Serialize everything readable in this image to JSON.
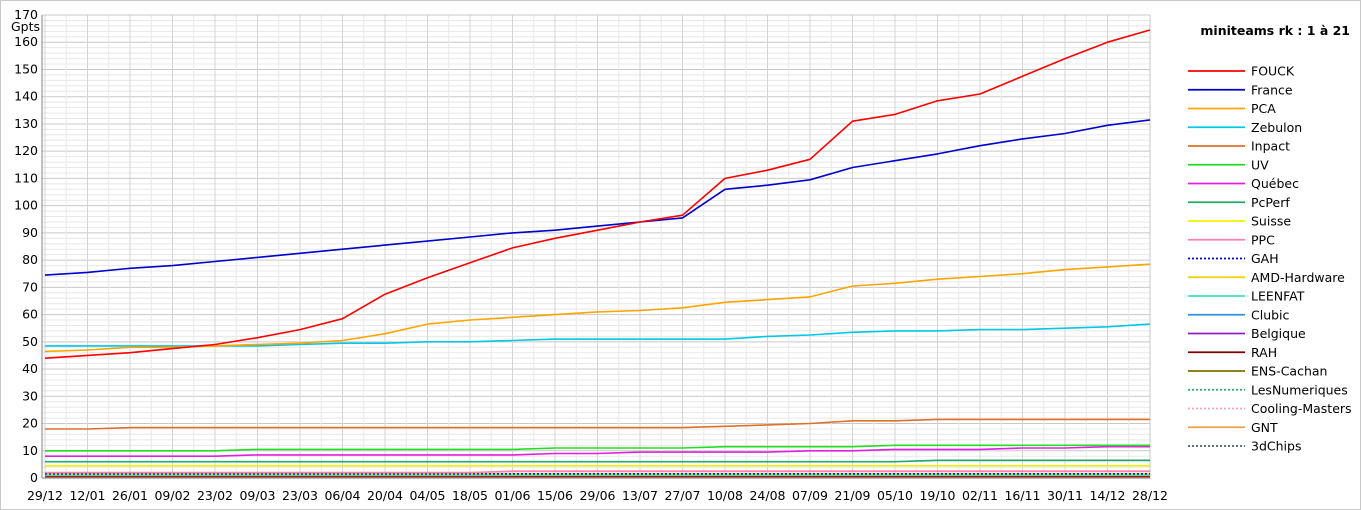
{
  "chart_data": {
    "type": "line",
    "title": "miniteams rk : 1 à 21",
    "ylabel": "Gpts",
    "xlabel": "",
    "ylim": [
      0,
      170
    ],
    "yticks": [
      0,
      10,
      20,
      30,
      40,
      50,
      60,
      70,
      80,
      90,
      100,
      110,
      120,
      130,
      140,
      150,
      160,
      170
    ],
    "grid": true,
    "legend_position": "right",
    "categories": [
      "29/12",
      "12/01",
      "26/01",
      "09/02",
      "23/02",
      "09/03",
      "23/03",
      "06/04",
      "20/04",
      "04/05",
      "18/05",
      "01/06",
      "15/06",
      "29/06",
      "13/07",
      "27/07",
      "10/08",
      "24/08",
      "07/09",
      "21/09",
      "05/10",
      "19/10",
      "02/11",
      "16/11",
      "30/11",
      "14/12",
      "28/12"
    ],
    "series": [
      {
        "name": "FOUCK",
        "color": "#ff0000",
        "style": "solid",
        "values": [
          44,
          45,
          46,
          47.5,
          49,
          51.5,
          54.5,
          58.5,
          67.5,
          73.5,
          79,
          84.5,
          88,
          91,
          94,
          96.5,
          110,
          113,
          117,
          131,
          133.5,
          138.5,
          141,
          147.5,
          154,
          160,
          164.5
        ]
      },
      {
        "name": "France",
        "color": "#0000cc",
        "style": "solid",
        "values": [
          74.5,
          75.5,
          77,
          78,
          79.5,
          81,
          82.5,
          84,
          85.5,
          87,
          88.5,
          90,
          91,
          92.5,
          94,
          95.5,
          106,
          107.5,
          109.5,
          114,
          116.5,
          119,
          122,
          124.5,
          126.5,
          129.5,
          131.5
        ]
      },
      {
        "name": "PCA",
        "color": "#ffa500",
        "style": "solid",
        "values": [
          46.5,
          47,
          48,
          48,
          48.5,
          49,
          49.5,
          50.5,
          53,
          56.5,
          58,
          59,
          60,
          61,
          61.5,
          62.5,
          64.5,
          65.5,
          66.5,
          70.5,
          71.5,
          73,
          74,
          75,
          76.5,
          77.5,
          78.5
        ]
      },
      {
        "name": "Zebulon",
        "color": "#00c8e6",
        "style": "solid",
        "values": [
          48.5,
          48.5,
          48.5,
          48.5,
          48.5,
          48.5,
          49,
          49.5,
          49.5,
          50,
          50,
          50.5,
          51,
          51,
          51,
          51,
          51,
          52,
          52.5,
          53.5,
          54,
          54,
          54.5,
          54.5,
          55,
          55.5,
          56.5
        ]
      },
      {
        "name": "Inpact",
        "color": "#e07028",
        "style": "solid",
        "values": [
          18,
          18,
          18.5,
          18.5,
          18.5,
          18.5,
          18.5,
          18.5,
          18.5,
          18.5,
          18.5,
          18.5,
          18.5,
          18.5,
          18.5,
          18.5,
          19,
          19.5,
          20,
          21,
          21,
          21.5,
          21.5,
          21.5,
          21.5,
          21.5,
          21.5
        ]
      },
      {
        "name": "UV",
        "color": "#22dd22",
        "style": "solid",
        "values": [
          10,
          10,
          10,
          10,
          10,
          10.5,
          10.5,
          10.5,
          10.5,
          10.5,
          10.5,
          10.5,
          11,
          11,
          11,
          11,
          11.5,
          11.5,
          11.5,
          11.5,
          12,
          12,
          12,
          12,
          12,
          12,
          12
        ]
      },
      {
        "name": "Québec",
        "color": "#e020e0",
        "style": "solid",
        "values": [
          8,
          8,
          8,
          8,
          8,
          8.5,
          8.5,
          8.5,
          8.5,
          8.5,
          8.5,
          8.5,
          9,
          9,
          9.5,
          9.5,
          9.5,
          9.5,
          10,
          10,
          10.5,
          10.5,
          10.5,
          11,
          11,
          11.5,
          11.5
        ]
      },
      {
        "name": "PcPerf",
        "color": "#22aa66",
        "style": "solid",
        "values": [
          6,
          6,
          6,
          6,
          6,
          6,
          6,
          6,
          6,
          6,
          6,
          6,
          6,
          6,
          6,
          6,
          6,
          6,
          6,
          6,
          6,
          6.5,
          6.5,
          6.5,
          6.5,
          6.5,
          6.5
        ]
      },
      {
        "name": "Suisse",
        "color": "#f0f000",
        "style": "solid",
        "values": [
          4.5,
          4.5,
          4.5,
          4.5,
          4.5,
          4.5,
          4.5,
          4.5,
          4.5,
          4.5,
          4.5,
          4.5,
          4.5,
          4.5,
          4.5,
          4.5,
          4.5,
          4.5,
          4.5,
          4.5,
          4.5,
          4.5,
          4.5,
          4.5,
          4.5,
          4.5,
          4.5
        ]
      },
      {
        "name": "PPC",
        "color": "#ff80b0",
        "style": "solid",
        "values": [
          2,
          2,
          2,
          2,
          2,
          2,
          2,
          2,
          2,
          2,
          2,
          2.5,
          2.5,
          2.5,
          2.5,
          2.5,
          2.5,
          2.5,
          2.5,
          2.5,
          2.5,
          2.5,
          2.5,
          2.5,
          2.5,
          2.5,
          2.5
        ]
      },
      {
        "name": "GAH",
        "color": "#0000cc",
        "style": "dotted",
        "values": [
          1.5,
          1.5,
          1.5,
          1.5,
          1.5,
          1.5,
          1.5,
          1.5,
          1.5,
          1.5,
          1.5,
          1.5,
          1.5,
          1.5,
          1.5,
          1.5,
          1.5,
          1.5,
          1.5,
          1.5,
          1.5,
          1.5,
          1.5,
          1.5,
          1.5,
          1.5,
          1.5
        ]
      },
      {
        "name": "AMD-Hardware",
        "color": "#f0d000",
        "style": "solid",
        "values": [
          1.5,
          1.5,
          1.5,
          1.5,
          1.5,
          1.5,
          1.5,
          1.5,
          1.5,
          1.5,
          1.5,
          1.5,
          1.5,
          1.5,
          1.5,
          1.5,
          1.5,
          1.5,
          1.5,
          1.5,
          1.5,
          1.5,
          1.5,
          1.5,
          1.5,
          1.5,
          1.5
        ]
      },
      {
        "name": "LEENFAT",
        "color": "#40e0c0",
        "style": "solid",
        "values": [
          1,
          1,
          1,
          1,
          1,
          1,
          1,
          1,
          1,
          1,
          1,
          1,
          1,
          1,
          1,
          1,
          1,
          1,
          1,
          1,
          1,
          1,
          1,
          1,
          1,
          1,
          1
        ]
      },
      {
        "name": "Clubic",
        "color": "#3090e0",
        "style": "solid",
        "values": [
          1,
          1,
          1,
          1,
          1,
          1,
          1,
          1,
          1,
          1,
          1,
          1,
          1,
          1,
          1,
          1,
          1,
          1,
          1,
          1,
          1,
          1,
          1,
          1,
          1,
          1,
          1
        ]
      },
      {
        "name": "Belgique",
        "color": "#9020c0",
        "style": "solid",
        "values": [
          1,
          1,
          1,
          1,
          1,
          1,
          1,
          1,
          1,
          1,
          1,
          1,
          1,
          1,
          1,
          1,
          1,
          1,
          1,
          1,
          1,
          1,
          1,
          1,
          1,
          1,
          1
        ]
      },
      {
        "name": "RAH",
        "color": "#800000",
        "style": "solid",
        "values": [
          0.5,
          0.5,
          0.5,
          0.5,
          0.5,
          0.5,
          0.5,
          0.5,
          0.5,
          0.5,
          0.5,
          0.5,
          0.5,
          0.5,
          0.5,
          0.5,
          0.5,
          0.5,
          0.5,
          0.5,
          0.5,
          0.5,
          0.5,
          0.5,
          0.5,
          0.5,
          0.5
        ]
      },
      {
        "name": "ENS-Cachan",
        "color": "#807000",
        "style": "solid",
        "values": [
          0.5,
          0.5,
          0.5,
          0.5,
          0.5,
          0.5,
          0.5,
          0.5,
          0.5,
          0.5,
          0.5,
          0.5,
          0.5,
          0.5,
          0.5,
          0.5,
          0.5,
          0.5,
          0.5,
          0.5,
          0.5,
          0.5,
          0.5,
          0.5,
          0.5,
          0.5,
          0.5
        ]
      },
      {
        "name": "LesNumeriques",
        "color": "#20b060",
        "style": "dotted",
        "values": [
          0.5,
          0.5,
          0.5,
          0.5,
          0.5,
          0.5,
          0.5,
          0.5,
          0.5,
          0.5,
          0.5,
          0.5,
          0.5,
          0.5,
          0.5,
          0.5,
          0.5,
          0.5,
          0.5,
          0.5,
          0.5,
          0.5,
          0.5,
          0.5,
          0.5,
          0.5,
          0.5
        ]
      },
      {
        "name": "Cooling-Masters",
        "color": "#ff9ec8",
        "style": "dotted",
        "values": [
          0.3,
          0.3,
          0.3,
          0.3,
          0.3,
          0.3,
          0.3,
          0.3,
          0.3,
          0.3,
          0.3,
          0.3,
          0.3,
          0.3,
          0.3,
          0.3,
          0.3,
          0.3,
          0.3,
          0.3,
          0.3,
          0.3,
          0.3,
          0.3,
          0.3,
          0.3,
          0.3
        ]
      },
      {
        "name": "GNT",
        "color": "#f0a040",
        "style": "solid",
        "values": [
          0.3,
          0.3,
          0.3,
          0.3,
          0.3,
          0.3,
          0.3,
          0.3,
          0.3,
          0.3,
          0.3,
          0.3,
          0.3,
          0.3,
          0.3,
          0.3,
          0.3,
          0.3,
          0.3,
          0.3,
          0.3,
          0.3,
          0.3,
          0.3,
          0.3,
          0.3,
          0.3
        ]
      },
      {
        "name": "3dChips",
        "color": "#406080",
        "style": "dotted",
        "values": [
          0.2,
          0.2,
          0.2,
          0.2,
          0.2,
          0.2,
          0.2,
          0.2,
          0.2,
          0.2,
          0.2,
          0.2,
          0.2,
          0.2,
          0.2,
          0.2,
          0.2,
          0.2,
          0.2,
          0.2,
          0.2,
          0.2,
          0.2,
          0.2,
          0.2,
          0.2,
          0.2
        ]
      }
    ]
  }
}
